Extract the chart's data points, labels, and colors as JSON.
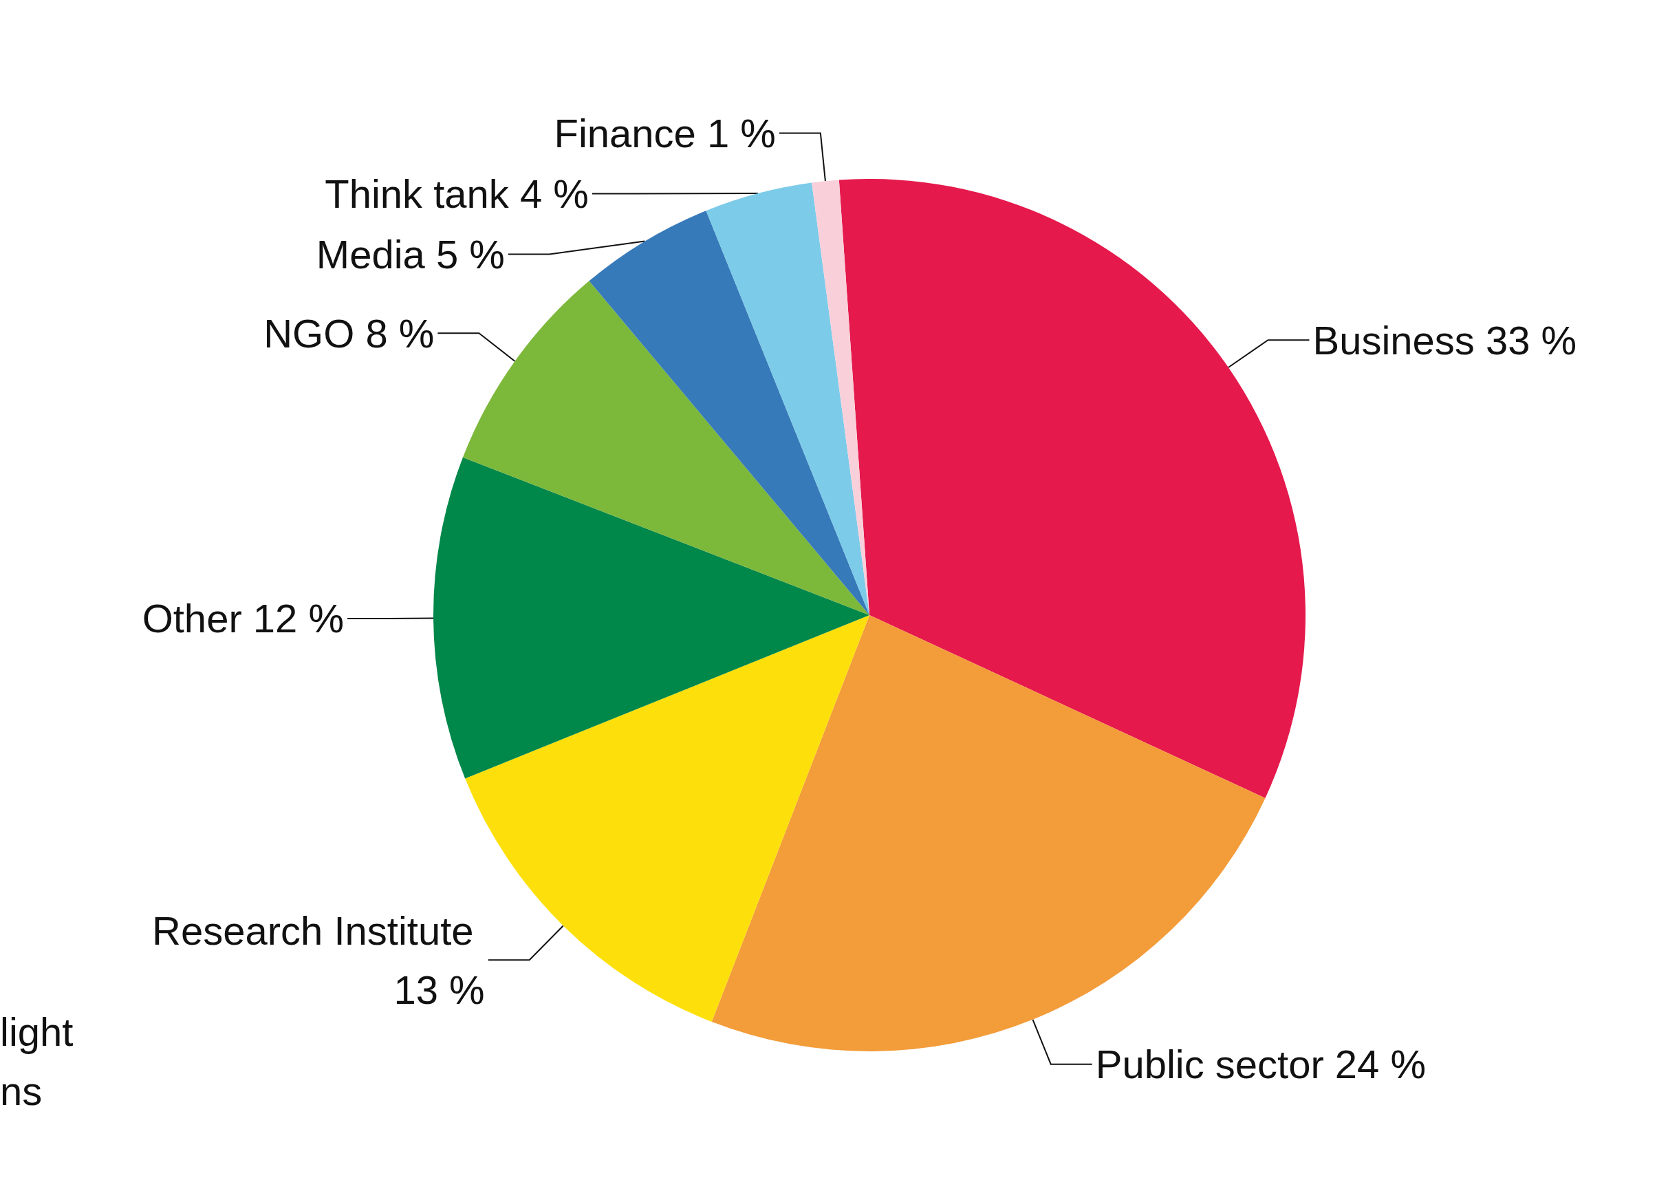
{
  "chart_data": {
    "type": "pie",
    "categories": [
      "Business",
      "Public sector",
      "Research Institute",
      "Other",
      "NGO",
      "Media",
      "Think tank",
      "Finance"
    ],
    "values": [
      33,
      24,
      13,
      12,
      8,
      5,
      4,
      1
    ],
    "colors": [
      "#e5194c",
      "#f39c3a",
      "#fde00b",
      "#00874a",
      "#7cb83a",
      "#377ab9",
      "#7ccbe9",
      "#f9d0da"
    ],
    "value_labels": [
      "33 %",
      "24 %",
      "13 %",
      "12 %",
      "8 %",
      "5 %",
      "4 %",
      "1 %"
    ],
    "legend": false,
    "annotations": [
      "light",
      "ns"
    ]
  }
}
